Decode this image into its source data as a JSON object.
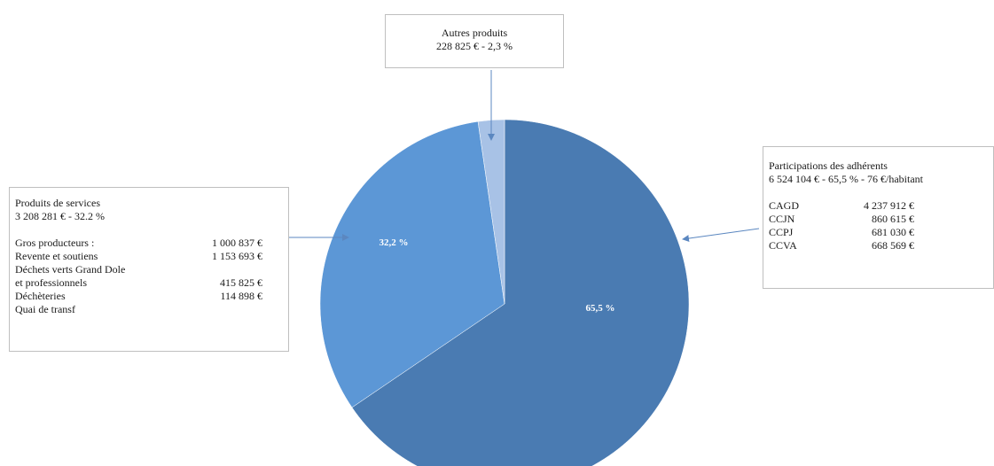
{
  "chart_data": {
    "type": "pie",
    "slices": [
      {
        "label": "Participations des adhérents",
        "value": 65.5,
        "data_label": "65,5 %",
        "color": "#4a7bb2"
      },
      {
        "label": "Produits de services",
        "value": 32.2,
        "data_label": "32,2 %",
        "color": "#5c97d6"
      },
      {
        "label": "Autres produits",
        "value": 2.3,
        "data_label": "",
        "color": "#a8c2e6"
      }
    ]
  },
  "callouts": {
    "autres": {
      "title": "Autres produits",
      "subtitle": "228 825 € - 2,3 %"
    },
    "services": {
      "title": "Produits de services",
      "subtitle": "3 208 281 € - 32.2 %",
      "items": [
        {
          "label": "Gros producteurs :",
          "value": "1 000 837 €"
        },
        {
          "label": "Revente et soutiens",
          "value": "1 153 693 €"
        },
        {
          "label": "Déchets verts Grand Dole",
          "value": ""
        },
        {
          "label": "et professionnels",
          "value": "415 825 €"
        },
        {
          "label": "Déchèteries",
          "value": "114 898 €"
        },
        {
          "label": "Quai de transf",
          "value": ""
        }
      ]
    },
    "adherents": {
      "title": "Participations des adhérents",
      "subtitle": "6 524 104 € - 65,5 % - 76 €/habitant",
      "items": [
        {
          "label": "CAGD",
          "value": "4 237 912 €"
        },
        {
          "label": "CCJN",
          "value": "860 615 €"
        },
        {
          "label": "CCPJ",
          "value": "681 030 €"
        },
        {
          "label": "CCVA",
          "value": "668 569 €"
        }
      ]
    }
  }
}
